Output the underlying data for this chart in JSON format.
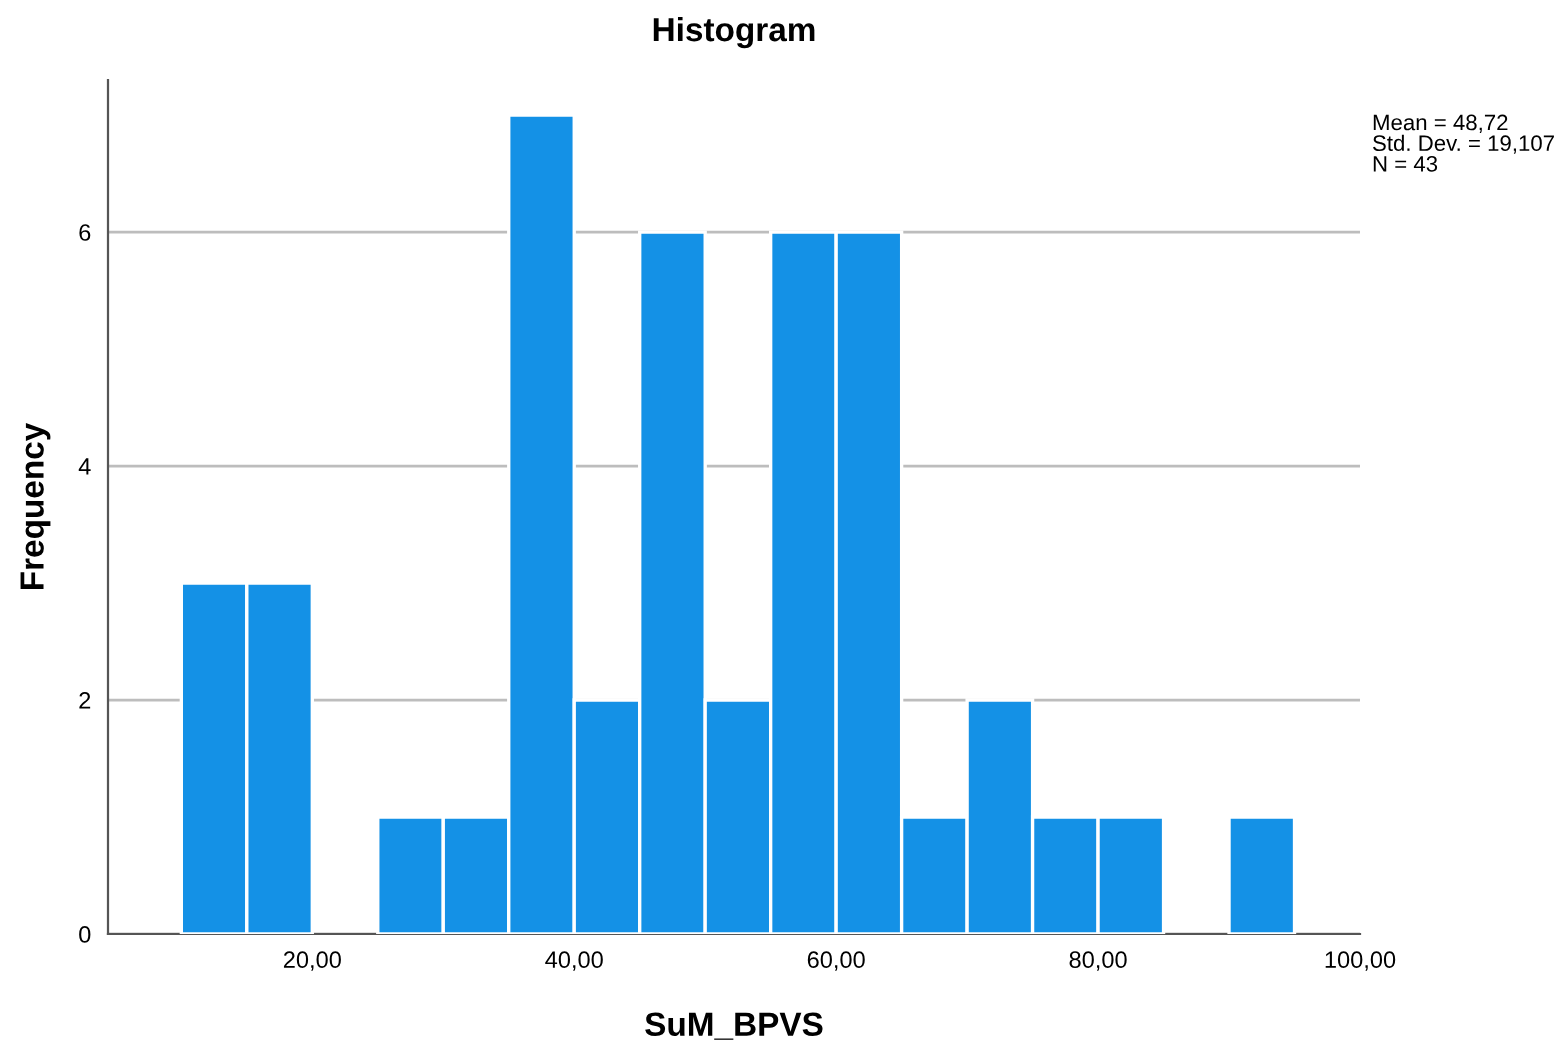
{
  "chart_data": {
    "type": "histogram",
    "title": "Histogram",
    "xlabel": "SuM_BPVS",
    "ylabel": "Frequency",
    "bins": [
      10,
      15,
      20,
      25,
      30,
      35,
      40,
      45,
      50,
      55,
      60,
      65,
      70,
      75,
      80,
      85,
      90,
      95
    ],
    "values": [
      3,
      3,
      0,
      1,
      1,
      7,
      2,
      6,
      2,
      6,
      6,
      1,
      2,
      1,
      1,
      0,
      1
    ],
    "color": "#1491e6",
    "xlim": [
      4.4,
      100
    ],
    "xticks": [
      {
        "value": 20,
        "label": "20,00"
      },
      {
        "value": 40,
        "label": "40,00"
      },
      {
        "value": 60,
        "label": "60,00"
      },
      {
        "value": 80,
        "label": "80,00"
      },
      {
        "value": 100,
        "label": "100,00"
      }
    ],
    "ylim": [
      0,
      7.3
    ],
    "yticks": [
      0,
      2,
      4,
      6
    ],
    "grid": "y",
    "annotations": [
      "Mean = 48,72",
      "Std. Dev. = 19,107",
      "N = 43"
    ]
  }
}
